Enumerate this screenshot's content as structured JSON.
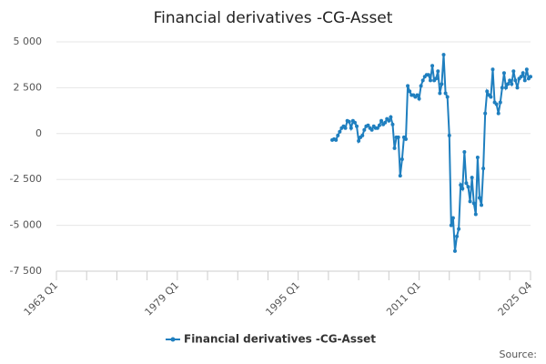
{
  "chart_data": {
    "type": "line",
    "title": "Financial derivatives -CG-Asset",
    "categories": [
      "1963 Q1",
      null,
      null,
      null,
      null,
      null,
      null,
      null,
      null,
      null,
      null,
      null,
      null,
      null,
      null,
      null,
      null,
      null,
      null,
      null,
      null,
      null,
      null,
      null,
      null,
      null,
      null,
      null,
      null,
      null,
      null,
      null,
      null,
      null,
      null,
      null,
      null,
      null,
      null,
      null,
      null,
      null,
      null,
      null,
      null,
      null,
      null,
      null,
      null,
      null,
      null,
      null,
      null,
      null,
      null,
      null,
      null,
      null,
      null,
      null,
      null,
      null,
      null,
      null,
      "1979 Q1",
      null,
      null,
      null,
      null,
      null,
      null,
      null,
      null,
      null,
      null,
      null,
      null,
      null,
      null,
      null,
      null,
      null,
      null,
      null,
      null,
      null,
      null,
      null,
      null,
      null,
      null,
      null,
      null,
      null,
      null,
      null,
      null,
      null,
      null,
      null,
      null,
      null,
      null,
      null,
      null,
      null,
      null,
      null,
      null,
      null,
      null,
      null,
      null,
      null,
      null,
      null,
      null,
      null,
      null,
      null,
      null,
      null,
      null,
      null,
      null,
      null,
      null,
      null,
      "1995 Q1",
      null,
      null,
      null,
      null,
      null,
      null,
      null,
      null,
      null,
      null,
      null,
      null,
      null,
      null,
      null,
      null,
      null,
      null,
      null,
      null,
      null,
      null,
      null,
      null,
      null,
      null,
      null,
      null,
      null,
      null,
      null,
      null,
      null,
      null,
      null,
      null,
      null,
      null,
      null,
      null,
      null,
      null,
      null,
      null,
      null,
      null,
      null,
      null,
      null,
      null,
      null,
      null,
      null,
      null,
      null,
      null,
      null,
      null,
      null,
      null,
      null,
      null,
      null,
      "2011 Q1",
      null,
      null,
      null,
      null,
      null,
      null,
      null,
      null,
      null,
      null,
      null,
      null,
      null,
      null,
      null,
      null,
      null,
      null,
      null,
      null,
      null,
      null,
      null,
      null,
      null,
      null,
      null,
      null,
      null,
      null,
      null,
      null,
      null,
      null,
      null,
      null,
      null,
      null,
      null,
      null,
      null,
      null,
      null,
      null,
      null,
      null,
      null,
      null,
      null,
      null,
      null,
      null,
      null,
      null,
      null,
      null,
      null,
      null,
      "2025 Q4"
    ],
    "series": [
      {
        "name": "Financial derivatives -CG-Asset",
        "color": "#1f7fbf",
        "values": [
          null,
          null,
          null,
          null,
          null,
          null,
          null,
          null,
          null,
          null,
          null,
          null,
          null,
          null,
          null,
          null,
          null,
          null,
          null,
          null,
          null,
          null,
          null,
          null,
          null,
          null,
          null,
          null,
          null,
          null,
          null,
          null,
          null,
          null,
          null,
          null,
          null,
          null,
          null,
          null,
          null,
          null,
          null,
          null,
          null,
          null,
          null,
          null,
          null,
          null,
          null,
          null,
          null,
          null,
          null,
          null,
          null,
          null,
          null,
          null,
          null,
          null,
          null,
          null,
          null,
          null,
          null,
          null,
          null,
          null,
          null,
          null,
          null,
          null,
          null,
          null,
          null,
          null,
          null,
          null,
          null,
          null,
          null,
          null,
          null,
          null,
          null,
          null,
          null,
          null,
          null,
          null,
          null,
          null,
          null,
          null,
          null,
          null,
          null,
          null,
          null,
          null,
          null,
          null,
          null,
          null,
          null,
          null,
          null,
          null,
          null,
          null,
          null,
          null,
          null,
          null,
          null,
          null,
          null,
          null,
          null,
          null,
          null,
          null,
          null,
          null,
          null,
          null,
          null,
          null,
          null,
          null,
          null,
          null,
          null,
          null,
          null,
          null,
          null,
          null,
          null,
          null,
          null,
          null,
          null,
          null,
          -350,
          -300,
          -350,
          -100,
          100,
          300,
          400,
          300,
          700,
          650,
          300,
          700,
          600,
          400,
          -400,
          -200,
          -100,
          200,
          400,
          450,
          300,
          200,
          400,
          300,
          300,
          450,
          700,
          500,
          600,
          800,
          700,
          900,
          500,
          -800,
          -200,
          -200,
          -2300,
          -1400,
          -200,
          -300,
          2600,
          2300,
          2100,
          2100,
          2000,
          2100,
          1900,
          2600,
          2900,
          3100,
          3200,
          3200,
          2900,
          3700,
          2900,
          3000,
          3400,
          2200,
          2700,
          4300,
          2200,
          2000,
          -100,
          -5000,
          -4600,
          -6400,
          -5600,
          -5200,
          -2800,
          -3000,
          -1000,
          -2700,
          -2900,
          -3700,
          -2400,
          -3800,
          -4400,
          -1300,
          -3500,
          -3900,
          -1900,
          1100,
          2300,
          2100,
          2000,
          3500,
          1700,
          1600,
          1100,
          1700,
          2500,
          3300,
          2500,
          2700,
          2900,
          2700,
          3400,
          2900,
          2500,
          3000,
          3100,
          3300,
          2900,
          3500,
          3000,
          3100
        ]
      }
    ],
    "ylim": [
      -7500,
      5000
    ],
    "yticks": [
      {
        "value": -7500,
        "label": "-7 500"
      },
      {
        "value": -5000,
        "label": "-5 000"
      },
      {
        "value": -2500,
        "label": "-2 500"
      },
      0,
      {
        "value": 2500,
        "label": "2 500"
      },
      {
        "value": 5000,
        "label": "5 000"
      }
    ],
    "grid": true,
    "legend": "bottom",
    "source": "Source:"
  }
}
